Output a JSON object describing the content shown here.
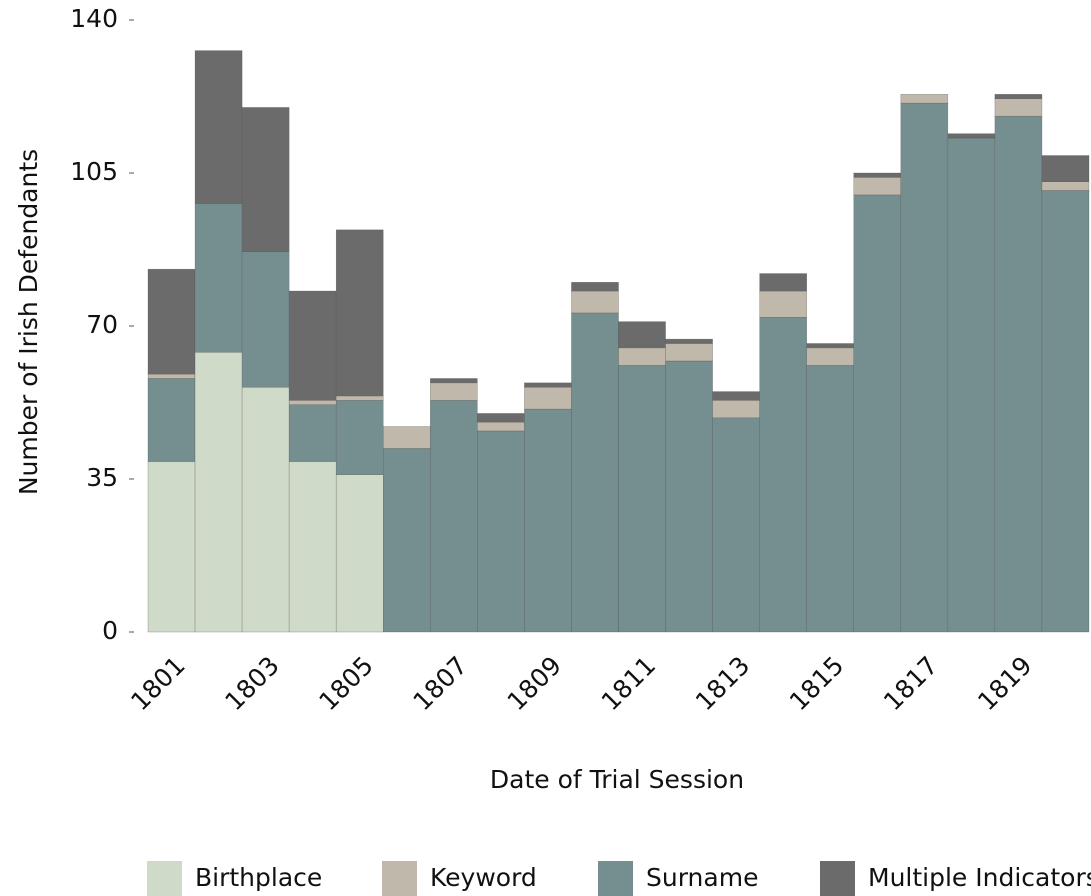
{
  "chart_data": {
    "type": "bar",
    "stacked": true,
    "xlabel": "Date of Trial Session",
    "ylabel": "Number of Irish Defendants",
    "categories": [
      "1801",
      null,
      "1803",
      null,
      "1805",
      null,
      "1807",
      null,
      "1809",
      null,
      "1811",
      null,
      "1813",
      null,
      "1815",
      null,
      "1817",
      null,
      "1819",
      null
    ],
    "series": [
      {
        "name": "Birthplace",
        "color": "#d0dac8",
        "values": [
          39,
          64,
          56,
          39,
          36,
          0,
          0,
          0,
          0,
          0,
          0,
          0,
          0,
          0,
          0,
          0,
          0,
          0,
          0,
          0
        ]
      },
      {
        "name": "Surname",
        "color": "#758f91",
        "values": [
          19,
          34,
          31,
          13,
          17,
          42,
          53,
          46,
          51,
          73,
          61,
          62,
          49,
          72,
          61,
          100,
          121,
          113,
          118,
          101
        ]
      },
      {
        "name": "Keyword",
        "color": "#c0b8aa",
        "values": [
          1,
          0,
          0,
          1,
          1,
          5,
          4,
          2,
          5,
          5,
          4,
          4,
          4,
          6,
          4,
          4,
          2,
          0,
          4,
          2
        ]
      },
      {
        "name": "Multiple Indicators",
        "color": "#6b6b6b",
        "values": [
          24,
          35,
          33,
          25,
          38,
          0,
          1,
          2,
          1,
          2,
          6,
          1,
          2,
          4,
          1,
          1,
          0,
          1,
          1,
          6
        ]
      }
    ],
    "legend_order": [
      "Birthplace",
      "Keyword",
      "Surname",
      "Multiple Indicators"
    ],
    "ylim": [
      0,
      140
    ],
    "yticks": [
      0,
      35,
      70,
      105,
      140
    ],
    "grid": false,
    "legend": "bottom"
  }
}
